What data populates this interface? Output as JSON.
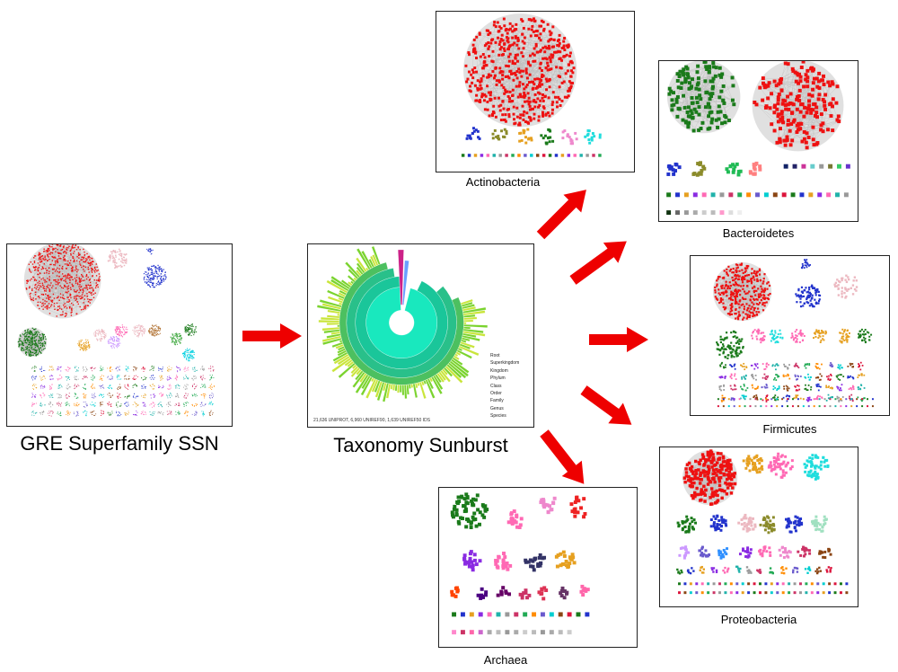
{
  "captions": {
    "ssn": "GRE Superfamily SSN",
    "sunburst": "Taxonomy Sunburst",
    "actinobacteria": "Actinobacteria",
    "bacteroidetes": "Bacteroidetes",
    "firmicutes": "Firmicutes",
    "proteobacteria": "Proteobacteria",
    "archaea": "Archaea"
  },
  "sunburst": {
    "legend": [
      "Root",
      "Superkingdom",
      "Kingdom",
      "Phylum",
      "Class",
      "Order",
      "Family",
      "Genus",
      "Species"
    ],
    "footer": "21,636 UNIPROT, 6,960 UNIREF90, 1,639 UNIREF50 IDS",
    "colors": {
      "inner": "#19e8be",
      "mid": "#1ac69a",
      "outer": "#7ad32e",
      "tips": "#c9e53a"
    }
  },
  "colors": {
    "arrow": "#ee0000",
    "cluster_red": "#ee1111",
    "cluster_green": "#1a7a1a",
    "cluster_blue": "#2233cc",
    "cluster_pink": "#ecb8c0",
    "edge_gray": "#c8c8c8"
  }
}
